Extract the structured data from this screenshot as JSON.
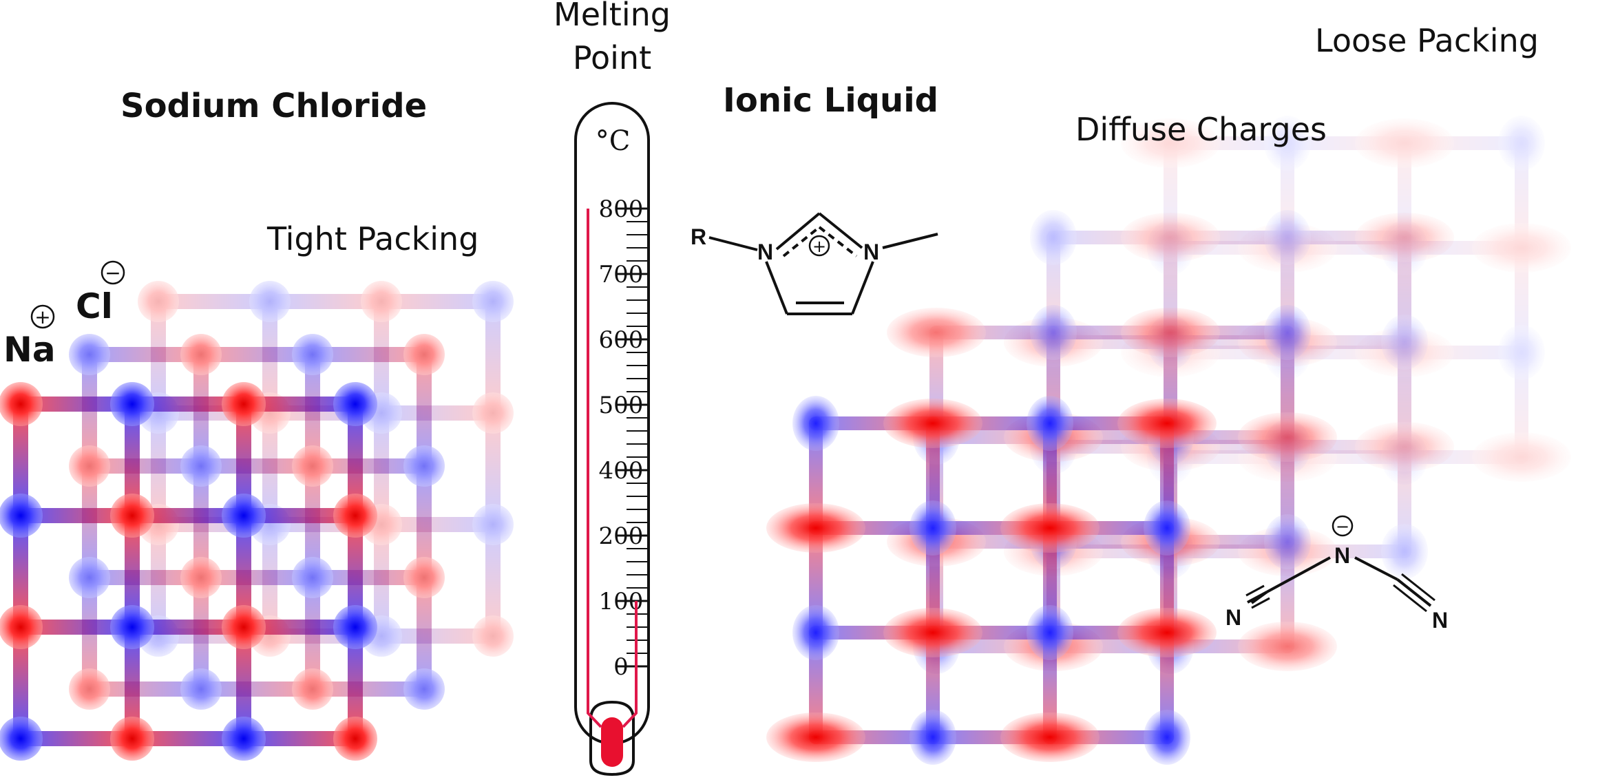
{
  "labels": {
    "sodium_chloride": "Sodium Chloride",
    "tight_packing": "Tight Packing",
    "melting_point_line1": "Melting",
    "melting_point_line2": "Point",
    "ionic_liquid": "Ionic Liquid",
    "diffuse_charges": "Diffuse Charges",
    "loose_packing": "Loose Packing"
  },
  "nacl_ions": {
    "cation_symbol": "Na",
    "anion_symbol": "Cl",
    "plus_sign": "+",
    "minus_sign": "−"
  },
  "thermometer": {
    "unit": "°C",
    "ticks": [
      "800",
      "700",
      "600",
      "500",
      "400",
      "200",
      "100",
      "0"
    ],
    "tick_values": [
      800,
      700,
      600,
      500,
      400,
      200,
      100,
      0
    ],
    "nacl_melting_point": 800,
    "ionic_liquid_melting_point": 100,
    "line_color": "#e0184a"
  },
  "cation_structure": {
    "substituent": "R",
    "n1": "N",
    "n2": "N",
    "charge": "+"
  },
  "anion_structure": {
    "central_n": "N",
    "left_n": "N",
    "right_n": "N",
    "charge": "−"
  },
  "colors": {
    "cation_blue": "#0a0aff",
    "anion_red": "#f00000"
  }
}
